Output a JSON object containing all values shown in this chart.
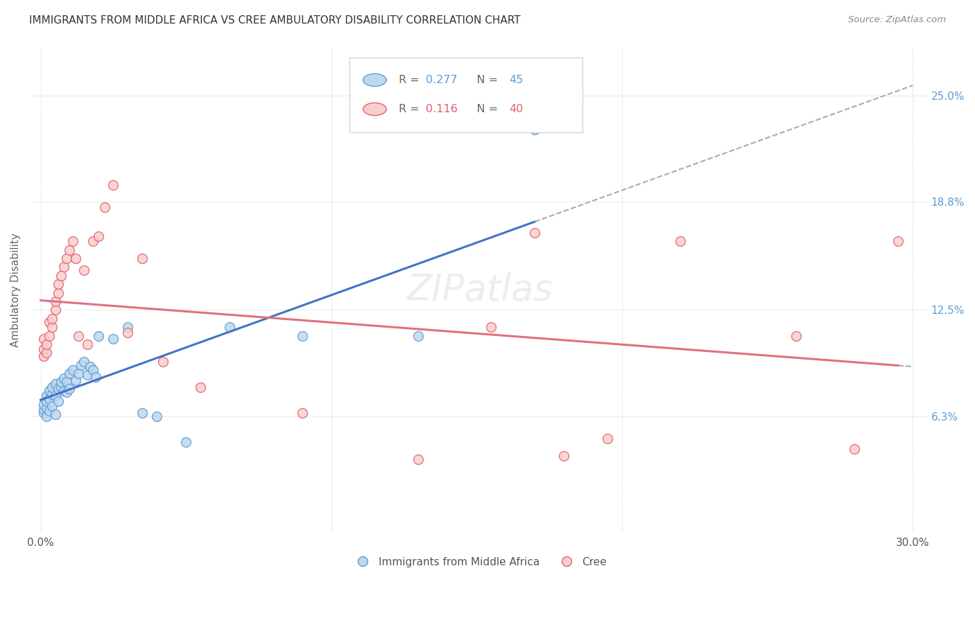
{
  "title": "IMMIGRANTS FROM MIDDLE AFRICA VS CREE AMBULATORY DISABILITY CORRELATION CHART",
  "source": "Source: ZipAtlas.com",
  "ylabel": "Ambulatory Disability",
  "yticks_labels": [
    "6.3%",
    "12.5%",
    "18.8%",
    "25.0%"
  ],
  "ytick_vals": [
    0.063,
    0.125,
    0.188,
    0.25
  ],
  "xlim": [
    0.0,
    0.3
  ],
  "ylim": [
    -0.005,
    0.278
  ],
  "r1": "0.277",
  "n1": "45",
  "r2": "0.116",
  "n2": "40",
  "series1_face": "#BDD7EE",
  "series1_edge": "#5B9BD5",
  "series2_face": "#F8CECC",
  "series2_edge": "#E06070",
  "trendline1_color": "#4472C4",
  "trendline2_color": "#E07080",
  "dash_color": "#AAAAAA",
  "background": "#FFFFFF",
  "s1_x": [
    0.001,
    0.001,
    0.001,
    0.002,
    0.002,
    0.002,
    0.002,
    0.003,
    0.003,
    0.003,
    0.004,
    0.004,
    0.004,
    0.005,
    0.005,
    0.005,
    0.006,
    0.006,
    0.007,
    0.007,
    0.008,
    0.008,
    0.009,
    0.009,
    0.01,
    0.01,
    0.011,
    0.012,
    0.013,
    0.014,
    0.015,
    0.016,
    0.017,
    0.018,
    0.019,
    0.02,
    0.025,
    0.03,
    0.035,
    0.04,
    0.05,
    0.065,
    0.09,
    0.13,
    0.17
  ],
  "s1_y": [
    0.065,
    0.067,
    0.07,
    0.063,
    0.068,
    0.072,
    0.075,
    0.073,
    0.078,
    0.066,
    0.076,
    0.08,
    0.069,
    0.082,
    0.075,
    0.064,
    0.079,
    0.072,
    0.08,
    0.083,
    0.078,
    0.085,
    0.083,
    0.077,
    0.088,
    0.079,
    0.09,
    0.084,
    0.088,
    0.093,
    0.095,
    0.087,
    0.092,
    0.09,
    0.086,
    0.11,
    0.108,
    0.115,
    0.065,
    0.063,
    0.048,
    0.115,
    0.11,
    0.11,
    0.23
  ],
  "s2_x": [
    0.001,
    0.001,
    0.001,
    0.002,
    0.002,
    0.003,
    0.003,
    0.004,
    0.004,
    0.005,
    0.005,
    0.006,
    0.006,
    0.007,
    0.008,
    0.009,
    0.01,
    0.011,
    0.012,
    0.013,
    0.015,
    0.016,
    0.018,
    0.02,
    0.022,
    0.025,
    0.03,
    0.035,
    0.042,
    0.055,
    0.09,
    0.13,
    0.155,
    0.17,
    0.18,
    0.195,
    0.22,
    0.26,
    0.28,
    0.295
  ],
  "s2_y": [
    0.098,
    0.102,
    0.108,
    0.1,
    0.105,
    0.11,
    0.118,
    0.115,
    0.12,
    0.125,
    0.13,
    0.135,
    0.14,
    0.145,
    0.15,
    0.155,
    0.16,
    0.165,
    0.155,
    0.11,
    0.148,
    0.105,
    0.165,
    0.168,
    0.185,
    0.198,
    0.112,
    0.155,
    0.095,
    0.08,
    0.065,
    0.038,
    0.115,
    0.17,
    0.04,
    0.05,
    0.165,
    0.11,
    0.044,
    0.165
  ]
}
